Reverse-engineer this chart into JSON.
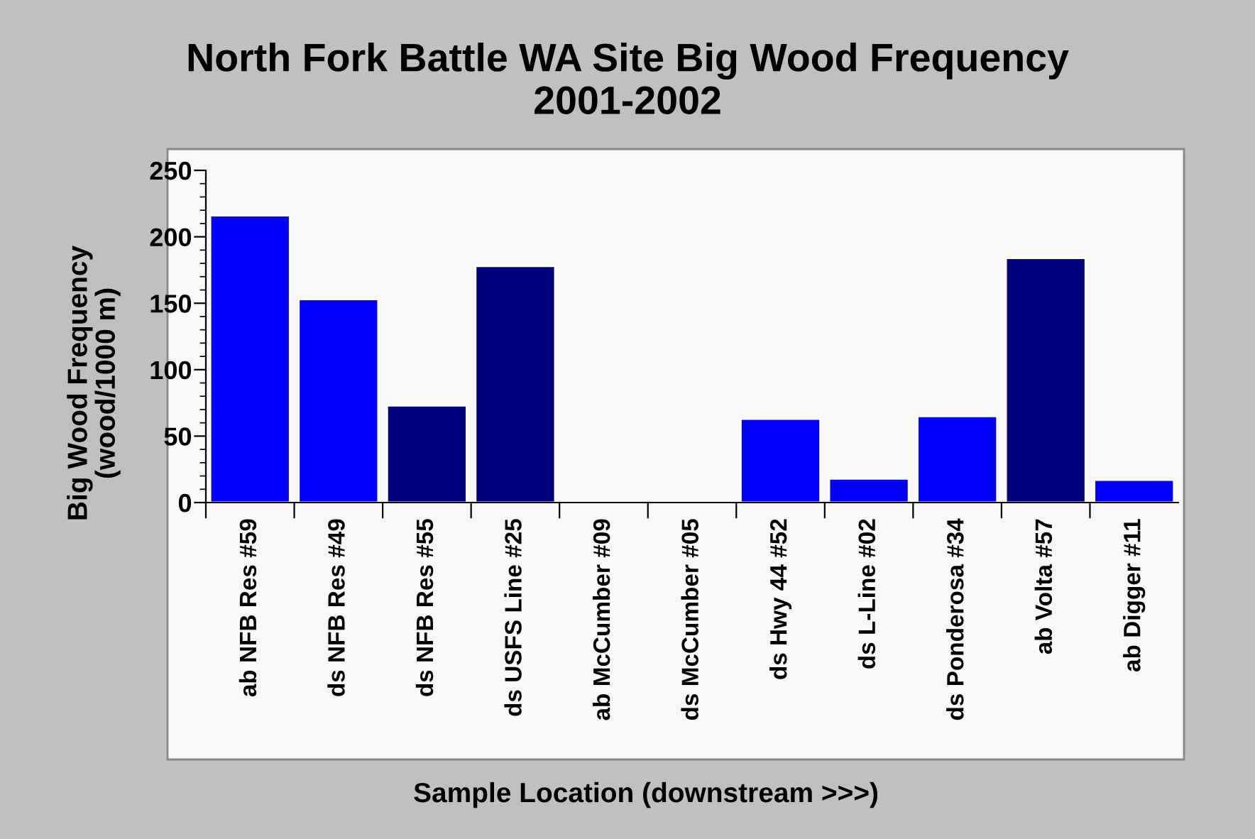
{
  "chart_data": {
    "type": "bar",
    "title": "North Fork Battle WA Site Big Wood Frequency\n2001-2002",
    "xlabel": "Sample Location (downstream >>>)",
    "ylabel": "Big Wood Frequency\n(wood/1000 m)",
    "categories": [
      "ab NFB Res #59",
      "ds NFB Res #49",
      "ds NFB Res #55",
      "ds USFS Line #25",
      "ab McCumber #09",
      "ds McCumber #05",
      "ds Hwy 44 #52",
      "ds L-Line #02",
      "ds Ponderosa #34",
      "ab Volta #57",
      "ab Digger #11"
    ],
    "values": [
      216,
      153,
      73,
      178,
      null,
      null,
      63,
      18,
      65,
      184,
      17
    ],
    "colors": [
      "#0000ff",
      "#0000ff",
      "#000080",
      "#000080",
      null,
      null,
      "#0000ff",
      "#0000ff",
      "#0000ff",
      "#000080",
      "#0000ff"
    ],
    "ylim": [
      0,
      250
    ],
    "yticks": [
      0,
      50,
      100,
      150,
      200,
      250
    ]
  }
}
